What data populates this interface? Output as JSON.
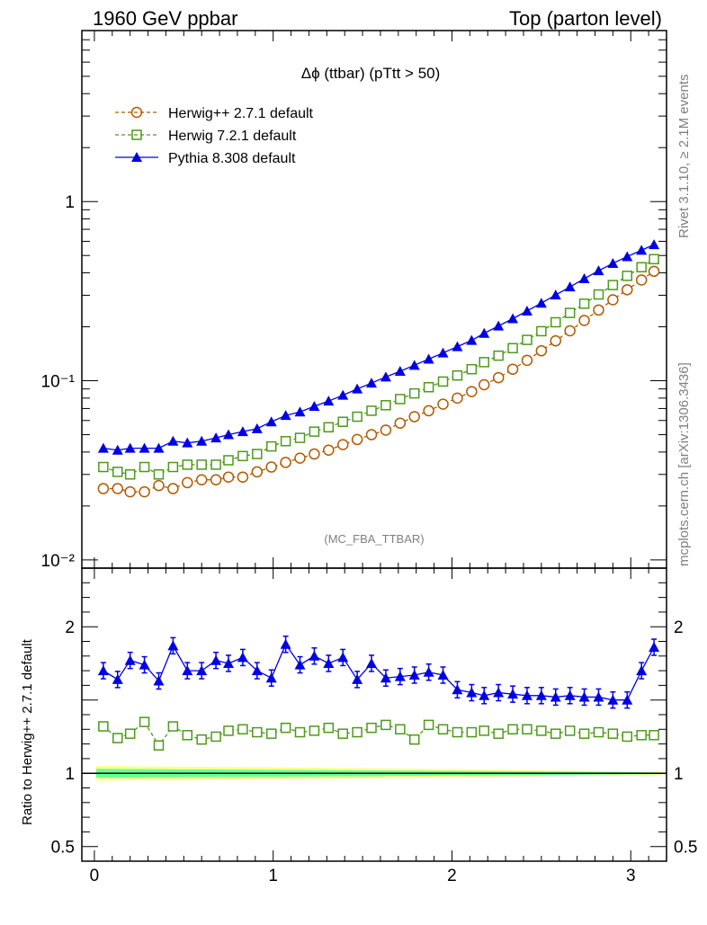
{
  "header": {
    "left_title": "1960 GeV ppbar",
    "right_title": "Top (parton level)"
  },
  "side_labels": {
    "rivet": "Rivet 3.1.10, ≥ 2.1M events",
    "mcplots": "mcplots.cern.ch [arXiv:1306.3436]"
  },
  "plot_title": "Δϕ (ttbar) (pTtt > 50)",
  "watermark": "(MC_FBA_TTBAR)",
  "ratio_ylabel": "Ratio to Herwig++ 2.7.1 default",
  "legend": {
    "herwigpp": "Herwig++ 2.7.1 default",
    "herwig7": "Herwig 7.2.1 default",
    "pythia": "Pythia 8.308 default"
  },
  "colors": {
    "herwigpp": "#b35900",
    "herwig7": "#4d9a1a",
    "pythia": "#0000e6",
    "band_inner": "#66ff99",
    "band_outer": "#ffff88"
  },
  "chart_data": [
    {
      "type": "line",
      "panel": "main",
      "yscale": "log",
      "xlim": [
        -0.07,
        3.2
      ],
      "ylim": [
        0.009,
        9
      ],
      "x_ticks": [
        "0",
        "1",
        "2",
        "3"
      ],
      "y_ticks": [
        "10⁻²",
        "10⁻¹",
        "1"
      ],
      "x": [
        0.05,
        0.13,
        0.2,
        0.28,
        0.36,
        0.44,
        0.52,
        0.6,
        0.68,
        0.75,
        0.83,
        0.91,
        0.99,
        1.07,
        1.15,
        1.23,
        1.31,
        1.39,
        1.47,
        1.55,
        1.63,
        1.71,
        1.79,
        1.87,
        1.95,
        2.03,
        2.11,
        2.18,
        2.26,
        2.34,
        2.42,
        2.5,
        2.58,
        2.66,
        2.74,
        2.82,
        2.9,
        2.98,
        3.06,
        3.13
      ],
      "series": [
        {
          "name": "Herwig++ 2.7.1 default",
          "marker": "circle",
          "values": [
            0.025,
            0.025,
            0.024,
            0.024,
            0.026,
            0.025,
            0.027,
            0.028,
            0.028,
            0.029,
            0.029,
            0.031,
            0.033,
            0.035,
            0.037,
            0.039,
            0.041,
            0.044,
            0.047,
            0.05,
            0.053,
            0.058,
            0.063,
            0.068,
            0.074,
            0.08,
            0.087,
            0.095,
            0.104,
            0.116,
            0.13,
            0.147,
            0.167,
            0.19,
            0.217,
            0.248,
            0.283,
            0.322,
            0.365,
            0.408
          ]
        },
        {
          "name": "Herwig 7.2.1 default",
          "marker": "open-square",
          "values": [
            0.033,
            0.031,
            0.03,
            0.033,
            0.03,
            0.033,
            0.034,
            0.034,
            0.034,
            0.036,
            0.038,
            0.039,
            0.043,
            0.046,
            0.048,
            0.052,
            0.055,
            0.059,
            0.063,
            0.068,
            0.073,
            0.079,
            0.085,
            0.092,
            0.099,
            0.107,
            0.116,
            0.127,
            0.138,
            0.152,
            0.169,
            0.189,
            0.212,
            0.239,
            0.269,
            0.303,
            0.342,
            0.385,
            0.43,
            0.477
          ]
        },
        {
          "name": "Pythia 8.308 default",
          "marker": "filled-triangle",
          "values": [
            0.042,
            0.041,
            0.042,
            0.042,
            0.042,
            0.046,
            0.045,
            0.046,
            0.048,
            0.05,
            0.052,
            0.054,
            0.059,
            0.064,
            0.067,
            0.072,
            0.077,
            0.083,
            0.09,
            0.097,
            0.105,
            0.113,
            0.122,
            0.132,
            0.143,
            0.155,
            0.168,
            0.184,
            0.202,
            0.222,
            0.245,
            0.271,
            0.301,
            0.334,
            0.371,
            0.411,
            0.452,
            0.493,
            0.535,
            0.575
          ]
        }
      ]
    },
    {
      "type": "line",
      "panel": "ratio",
      "ylabel": "Ratio to Herwig++ 2.7.1 default",
      "xlim": [
        -0.07,
        3.2
      ],
      "ylim": [
        0.4,
        2.4
      ],
      "x_ticks": [
        "0",
        "1",
        "2",
        "3"
      ],
      "y_ticks": [
        "0.5",
        "1",
        "2"
      ],
      "x": [
        0.05,
        0.13,
        0.2,
        0.28,
        0.36,
        0.44,
        0.52,
        0.6,
        0.68,
        0.75,
        0.83,
        0.91,
        0.99,
        1.07,
        1.15,
        1.23,
        1.31,
        1.39,
        1.47,
        1.55,
        1.63,
        1.71,
        1.79,
        1.87,
        1.95,
        2.03,
        2.11,
        2.18,
        2.26,
        2.34,
        2.42,
        2.5,
        2.58,
        2.66,
        2.74,
        2.82,
        2.9,
        2.98,
        3.06,
        3.13
      ],
      "band": {
        "name": "Herwig++ 2.7.1 default",
        "y": 1.0
      },
      "series": [
        {
          "name": "Herwig 7.2.1 default",
          "marker": "open-square",
          "values": [
            1.32,
            1.24,
            1.27,
            1.35,
            1.19,
            1.32,
            1.26,
            1.23,
            1.25,
            1.29,
            1.3,
            1.28,
            1.27,
            1.31,
            1.28,
            1.29,
            1.31,
            1.27,
            1.28,
            1.31,
            1.33,
            1.3,
            1.23,
            1.33,
            1.3,
            1.28,
            1.28,
            1.29,
            1.27,
            1.3,
            1.3,
            1.29,
            1.27,
            1.29,
            1.27,
            1.28,
            1.27,
            1.25,
            1.26,
            1.26
          ]
        },
        {
          "name": "Pythia 8.308 default",
          "marker": "filled-triangle",
          "values": [
            1.7,
            1.64,
            1.77,
            1.74,
            1.63,
            1.87,
            1.7,
            1.7,
            1.77,
            1.75,
            1.79,
            1.7,
            1.65,
            1.88,
            1.74,
            1.8,
            1.75,
            1.79,
            1.64,
            1.75,
            1.65,
            1.66,
            1.67,
            1.69,
            1.67,
            1.57,
            1.55,
            1.53,
            1.55,
            1.54,
            1.53,
            1.53,
            1.52,
            1.53,
            1.52,
            1.52,
            1.5,
            1.5,
            1.7,
            1.86
          ]
        }
      ]
    }
  ]
}
